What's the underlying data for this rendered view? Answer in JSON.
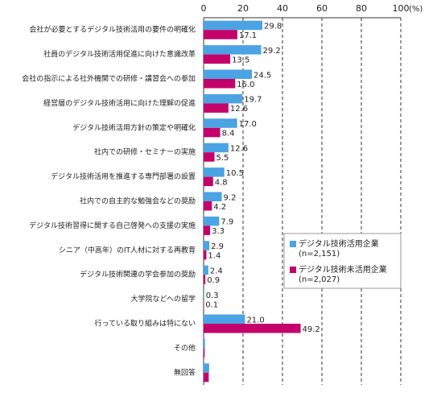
{
  "chart_data": {
    "type": "hbar",
    "categories": [
      "会社が必要とするデジタル技術活用の要件の明確化",
      "社員のデジタル技術活用促進に向けた意識改革",
      "会社の指示による社外機関での研修・講習会への参加",
      "経営層のデジタル技術活用に向けた理解の促進",
      "デジタル技術活用方針の策定や明確化",
      "社内での研修・セミナーの実施",
      "デジタル技術活用を推進する専門部署の設置",
      "社内での自主的な勉強会などの奨励",
      "デジタル技術習得に関する自己啓発への支援の実施",
      "シニア（中高年）のIT人材に対する再教育",
      "デジタル技術関連の学会参加の奨励",
      "大学院などへの留学",
      "行っている取り組みは特にない",
      "その他",
      "無回答"
    ],
    "series": [
      {
        "name": "デジタル技術活用企業\n(n=2,151)",
        "color": "#4ca3e4",
        "values": [
          29.8,
          29.2,
          24.5,
          19.7,
          17.0,
          12.6,
          10.5,
          9.2,
          7.9,
          2.9,
          2.4,
          0.3,
          21.0,
          0.7,
          2.8
        ],
        "value_labels": [
          "29.8",
          "29.2",
          "24.5",
          "19.7",
          "17.0",
          "12.6",
          "10.5",
          "9.2",
          "7.9",
          "2.9",
          "2.4",
          "0.3",
          "21.0",
          null,
          null
        ]
      },
      {
        "name": "デジタル技術未活用企業\n(n=2,027)",
        "color": "#c4006a",
        "values": [
          17.1,
          13.5,
          16.0,
          12.6,
          8.4,
          5.5,
          4.8,
          4.2,
          3.3,
          1.4,
          0.9,
          0.1,
          49.2,
          0.5,
          2.6
        ],
        "value_labels": [
          "17.1",
          "13.5",
          "16.0",
          "12.6",
          "8.4",
          "5.5",
          "4.8",
          "4.2",
          "3.3",
          "1.4",
          "0.9",
          "0.1",
          "49.2",
          null,
          null
        ]
      }
    ],
    "xlim": [
      0,
      100
    ],
    "xticks": [
      0,
      20,
      40,
      60,
      80,
      100
    ],
    "x_unit": "(%)",
    "grid": true
  }
}
